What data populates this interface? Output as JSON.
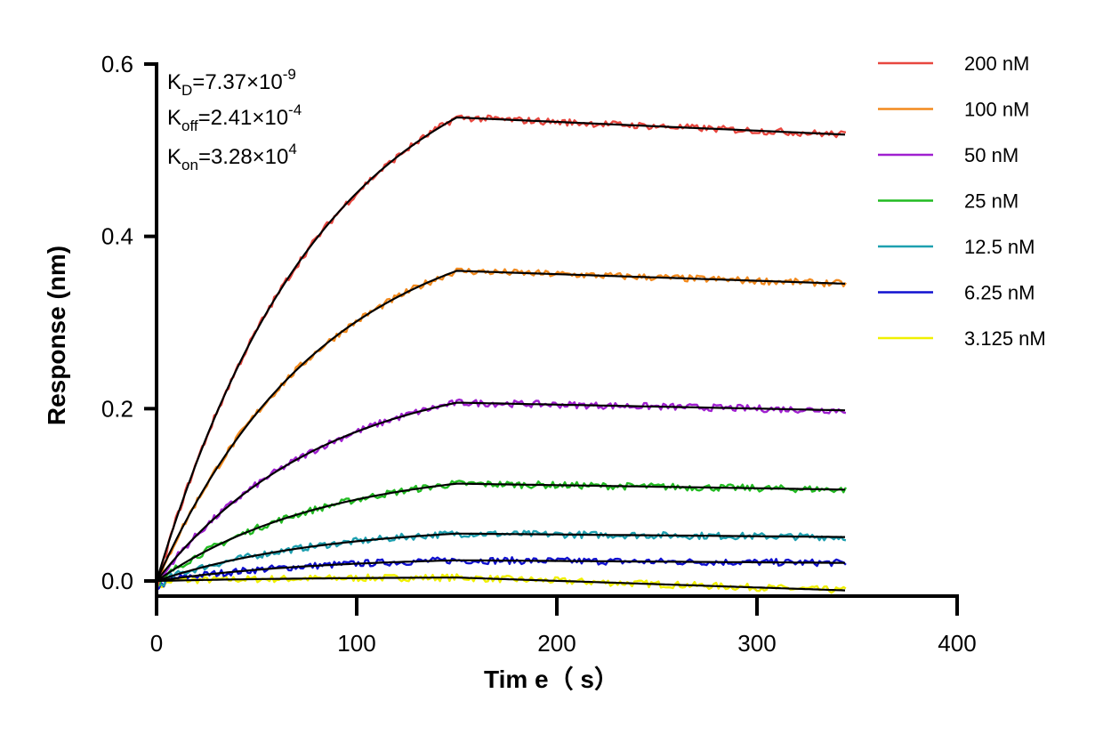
{
  "chart_data": {
    "type": "line",
    "xlabel": "Tim e（ s）",
    "ylabel": "Response (nm)",
    "xlim": [
      0,
      400
    ],
    "ylim": [
      -0.02,
      0.6
    ],
    "x_ticks": [
      "0",
      "100",
      "200",
      "300",
      "400"
    ],
    "y_ticks": [
      "0.0",
      "0.2",
      "0.4",
      "0.6"
    ],
    "x_tick_values": [
      0,
      100,
      200,
      300,
      400
    ],
    "y_tick_values": [
      0.0,
      0.2,
      0.4,
      0.6
    ],
    "grid": false,
    "legend_position": "right",
    "association_end": 150,
    "x_end": 345,
    "annotations": [
      {
        "base": "K",
        "sub": "D",
        "eq": "=7.37×10",
        "exp": "-9"
      },
      {
        "base": "K",
        "sub": "off",
        "eq": "=2.41×10",
        "exp": "-4"
      },
      {
        "base": "K",
        "sub": "on",
        "eq": "=3.28×10",
        "exp": "4"
      }
    ],
    "series": [
      {
        "name": "200 nM",
        "color": "#e8473f",
        "plateau": 0.538,
        "end": 0.518
      },
      {
        "name": "100 nM",
        "color": "#f28a1e",
        "plateau": 0.36,
        "end": 0.345
      },
      {
        "name": "50 nM",
        "color": "#a020d0",
        "plateau": 0.207,
        "end": 0.198
      },
      {
        "name": "25 nM",
        "color": "#22bb22",
        "plateau": 0.113,
        "end": 0.106
      },
      {
        "name": "12.5 nM",
        "color": "#1ea0b0",
        "plateau": 0.055,
        "end": 0.051
      },
      {
        "name": "6.25 nM",
        "color": "#1010d0",
        "plateau": 0.024,
        "end": 0.021
      },
      {
        "name": "3.125 nM",
        "color": "#f0f000",
        "plateau": 0.004,
        "end": -0.011
      }
    ],
    "fit_color": "#000000"
  }
}
